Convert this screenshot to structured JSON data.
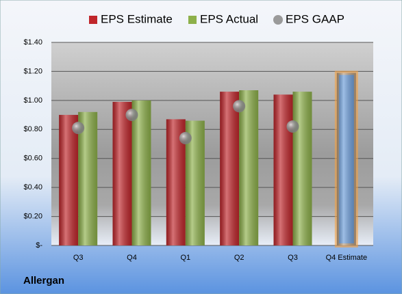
{
  "chart_data": {
    "type": "bar",
    "title": "Allergan",
    "categories": [
      "Q3",
      "Q4",
      "Q1",
      "Q2",
      "Q3",
      "Q4 Estimate"
    ],
    "series": [
      {
        "name": "EPS Estimate",
        "color": "#c0262b",
        "point_colors": [
          "#c0262b",
          "#c0262b",
          "#c0262b",
          "#c0262b",
          "#c0262b",
          "#6a9bd8"
        ],
        "highlight_color": "#f5a040",
        "values": [
          0.9,
          0.99,
          0.87,
          1.06,
          1.04,
          1.19
        ]
      },
      {
        "name": "EPS Actual",
        "color": "#8db04a",
        "values": [
          0.92,
          1.0,
          0.86,
          1.07,
          1.06,
          null
        ]
      },
      {
        "name": "EPS GAAP",
        "color": "#9a9a9a",
        "marker": "circle",
        "values": [
          0.81,
          0.9,
          0.74,
          0.96,
          0.82,
          null
        ]
      }
    ],
    "ylim": [
      0,
      1.4
    ],
    "yticks": [
      {
        "value": 0,
        "label": "$-"
      },
      {
        "value": 0.2,
        "label": "$0.20"
      },
      {
        "value": 0.4,
        "label": "$0.40"
      },
      {
        "value": 0.6,
        "label": "$0.60"
      },
      {
        "value": 0.8,
        "label": "$0.80"
      },
      {
        "value": 1.0,
        "label": "$1.00"
      },
      {
        "value": 1.2,
        "label": "$1.20"
      },
      {
        "value": 1.4,
        "label": "$1.40"
      }
    ],
    "grid": true
  }
}
